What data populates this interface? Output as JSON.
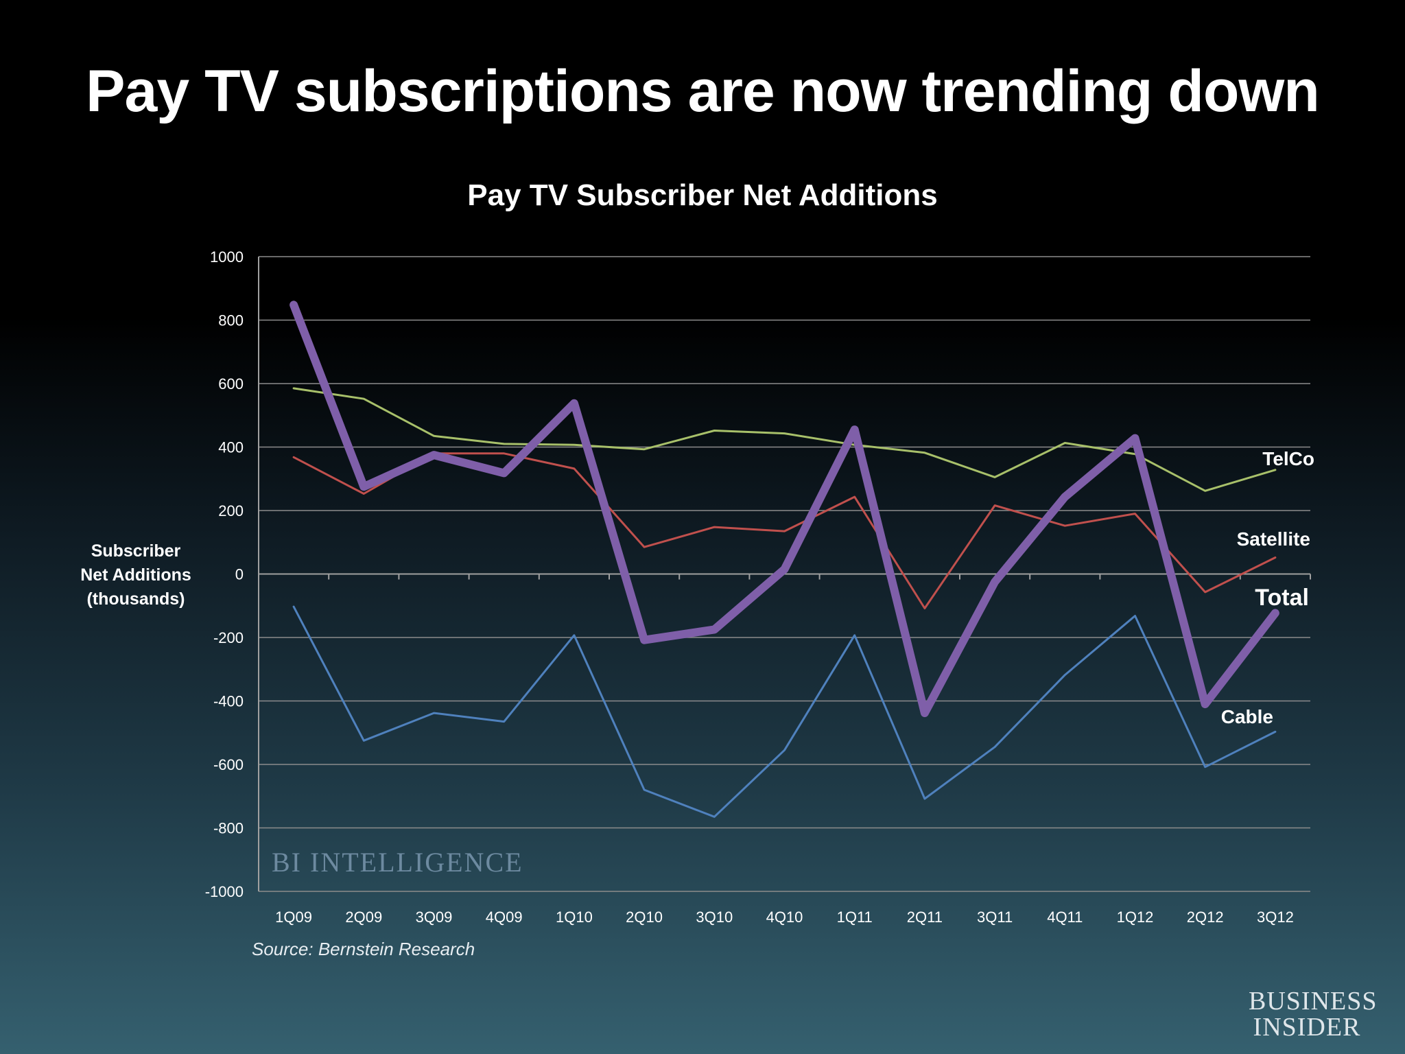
{
  "slide_title": "Pay TV subscriptions are now trending down",
  "source": "Source: Bernstein Research",
  "watermark": "BI INTELLIGENCE",
  "brand": "BUSINESS\nINSIDER",
  "chart_data": {
    "type": "line",
    "title": "Pay TV Subscriber Net Additions",
    "ylabel": "Subscriber\nNet Additions\n(thousands)",
    "xlabel": "",
    "ylim": [
      -1000,
      1000
    ],
    "yticks": [
      1000,
      800,
      600,
      400,
      200,
      0,
      -200,
      -400,
      -600,
      -800,
      -1000
    ],
    "grid": true,
    "legend": "inline-right",
    "categories": [
      "1Q09",
      "2Q09",
      "3Q09",
      "4Q09",
      "1Q10",
      "2Q10",
      "3Q10",
      "4Q10",
      "1Q11",
      "2Q11",
      "3Q11",
      "4Q11",
      "1Q12",
      "2Q12",
      "3Q12"
    ],
    "series": [
      {
        "name": "TelCo",
        "color": "#a8c06a",
        "width": 3,
        "values": [
          585,
          552,
          435,
          410,
          407,
          393,
          452,
          443,
          407,
          382,
          305,
          413,
          378,
          262,
          328
        ]
      },
      {
        "name": "Satellite",
        "color": "#c0504d",
        "width": 3,
        "values": [
          368,
          253,
          380,
          380,
          332,
          85,
          148,
          135,
          243,
          -108,
          216,
          152,
          190,
          -57,
          52
        ]
      },
      {
        "name": "Total",
        "color": "#7f5fa9",
        "width": 12,
        "values": [
          848,
          275,
          375,
          318,
          538,
          -208,
          -175,
          15,
          455,
          -438,
          -25,
          243,
          428,
          -410,
          -123
        ]
      },
      {
        "name": "Cable",
        "color": "#4f81bd",
        "width": 3,
        "values": [
          -103,
          -525,
          -438,
          -465,
          -193,
          -680,
          -765,
          -555,
          -193,
          -708,
          -545,
          -318,
          -132,
          -608,
          -497
        ]
      }
    ]
  }
}
